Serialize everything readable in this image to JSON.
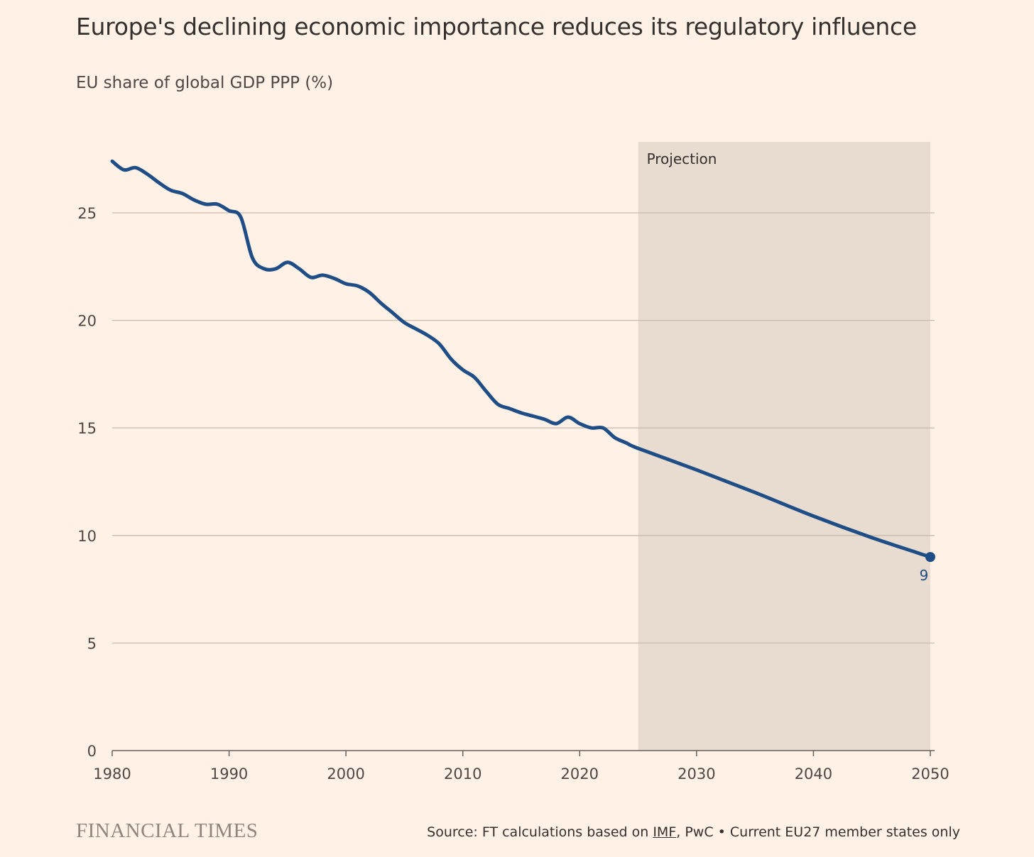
{
  "chart_data": {
    "type": "line",
    "title": "Europe's declining economic importance reduces its regulatory influence",
    "subtitle": "EU share of global GDP PPP (%)",
    "xlabel": "",
    "ylabel": "EU share of global GDP PPP (%)",
    "xlim": [
      1980,
      2050
    ],
    "ylim": [
      0,
      28.3
    ],
    "x_ticks": [
      1980,
      1990,
      2000,
      2010,
      2020,
      2030,
      2040,
      2050
    ],
    "y_ticks": [
      0,
      5,
      10,
      15,
      20,
      25
    ],
    "grid": "horizontal",
    "projection": {
      "label": "Projection",
      "from": 2025,
      "to": 2050
    },
    "series": [
      {
        "name": "EU27 share of global GDP PPP",
        "color": "#1f4e86",
        "x": [
          1980,
          1981,
          1982,
          1983,
          1984,
          1985,
          1986,
          1987,
          1988,
          1989,
          1990,
          1991,
          1992,
          1993,
          1994,
          1995,
          1996,
          1997,
          1998,
          1999,
          2000,
          2001,
          2002,
          2003,
          2004,
          2005,
          2006,
          2007,
          2008,
          2009,
          2010,
          2011,
          2012,
          2013,
          2014,
          2015,
          2016,
          2017,
          2018,
          2019,
          2020,
          2021,
          2022,
          2023,
          2024,
          2025,
          2030,
          2035,
          2040,
          2045,
          2050
        ],
        "values": [
          27.4,
          27.0,
          27.1,
          26.8,
          26.4,
          26.05,
          25.9,
          25.6,
          25.4,
          25.4,
          25.1,
          24.8,
          22.9,
          22.4,
          22.4,
          22.7,
          22.4,
          22.0,
          22.1,
          21.95,
          21.7,
          21.6,
          21.3,
          20.8,
          20.35,
          19.9,
          19.6,
          19.3,
          18.9,
          18.2,
          17.7,
          17.35,
          16.7,
          16.1,
          15.9,
          15.7,
          15.55,
          15.4,
          15.2,
          15.5,
          15.2,
          15.0,
          15.0,
          14.55,
          14.3,
          14.05,
          13.05,
          12.0,
          10.9,
          9.9,
          9.0
        ],
        "end_label": "9"
      }
    ]
  },
  "footer": {
    "logo": "FINANCIAL TIMES",
    "source_prefix": "Source: FT calculations based on ",
    "source_link": "IMF",
    "source_suffix": ", PwC • Current EU27 member states only"
  }
}
